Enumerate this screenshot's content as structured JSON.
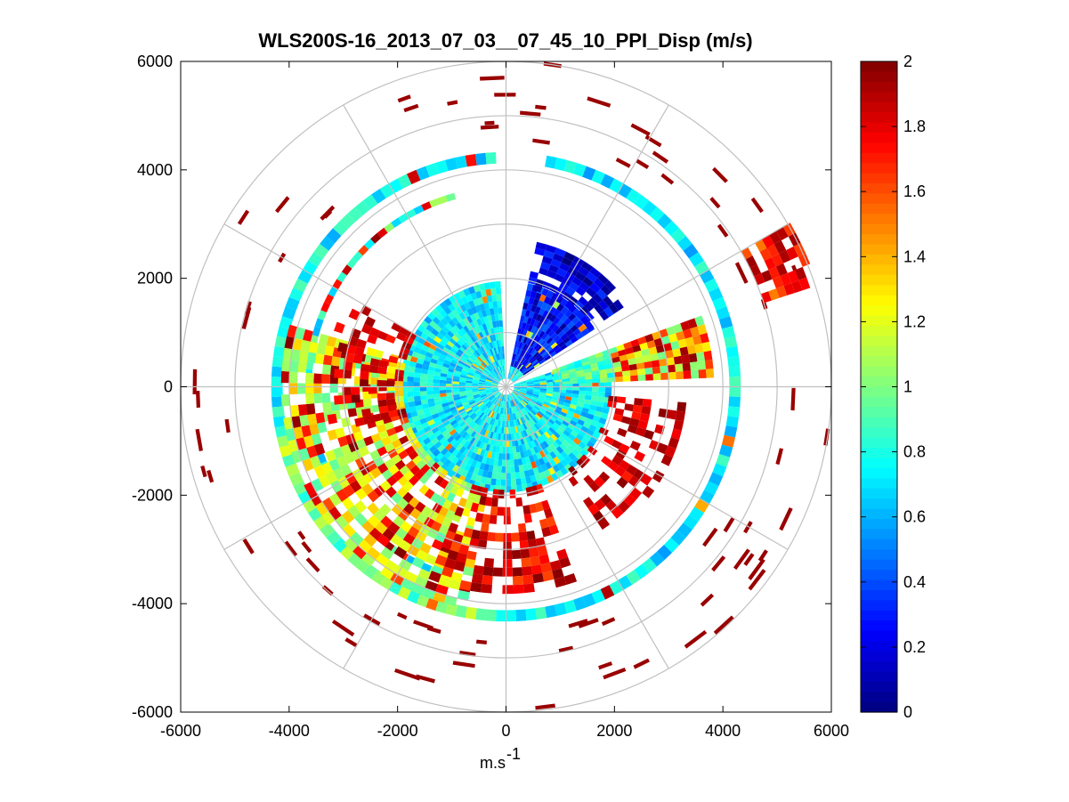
{
  "chart_data": {
    "type": "heatmap",
    "subtype": "polar-ppi-scan",
    "title": "WLS200S-16_2013_07_03__07_45_10_PPI_Disp (m/s)",
    "xlabel": "m.s",
    "xlabel_sup": "-1",
    "ylabel": "",
    "xlim": [
      -6000,
      6000
    ],
    "ylim": [
      -6000,
      6000
    ],
    "x_ticks": [
      "-6000",
      "-4000",
      "-2000",
      "0",
      "2000",
      "4000",
      "6000"
    ],
    "y_ticks": [
      "6000",
      "4000",
      "2000",
      "0",
      "-2000",
      "-4000",
      "-6000"
    ],
    "x_tick_values": [
      -6000,
      -4000,
      -2000,
      0,
      2000,
      4000,
      6000
    ],
    "y_tick_values": [
      6000,
      4000,
      2000,
      0,
      -2000,
      -4000,
      -6000
    ],
    "polar_grid": {
      "ring_radii": [
        1000,
        2000,
        3000,
        4000,
        5000,
        6000
      ],
      "spoke_angles_deg": [
        0,
        30,
        60,
        90,
        120,
        150,
        180,
        210,
        240,
        270,
        300,
        330
      ]
    },
    "colorbar": {
      "colormap": "jet",
      "min": 0,
      "max": 2,
      "ticks": [
        "2",
        "1.8",
        "1.6",
        "1.4",
        "1.2",
        "1",
        "0.8",
        "0.6",
        "0.4",
        "0.2",
        "0"
      ],
      "tick_values": [
        2,
        1.8,
        1.6,
        1.4,
        1.2,
        1,
        0.8,
        0.6,
        0.4,
        0.2,
        0
      ]
    },
    "scan_sectors": [
      {
        "region": "inner disk",
        "range_m": [
          0,
          1900
        ],
        "az_deg": [
          0,
          360
        ],
        "value": 0.7
      },
      {
        "region": "NE near",
        "range_m": [
          300,
          2600
        ],
        "az_deg": [
          12,
          70
        ],
        "value": 0.15
      },
      {
        "region": "E band",
        "range_m": [
          900,
          3800
        ],
        "az_deg": [
          70,
          85
        ],
        "value": 1.5
      },
      {
        "region": "ring ~4300 m",
        "range_m": [
          4100,
          4400
        ],
        "az_deg": [
          0,
          360
        ],
        "value": 0.7
      },
      {
        "region": "SW outer",
        "range_m": [
          2000,
          4300
        ],
        "az_deg": [
          190,
          265
        ],
        "value": 1.3
      },
      {
        "region": "S outer",
        "range_m": [
          2000,
          3800
        ],
        "az_deg": [
          160,
          200
        ],
        "value": 1.9
      }
    ]
  }
}
